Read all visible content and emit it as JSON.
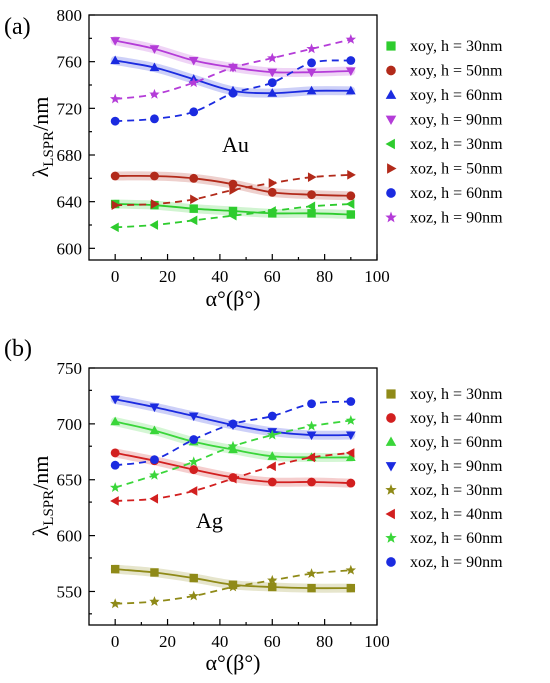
{
  "chart_data": [
    {
      "type": "line",
      "panel_label": "(a)",
      "annotation": "Au",
      "xlabel": "α°(β°)",
      "ylabel_main": "λ",
      "ylabel_sub": "LSPR",
      "ylabel_unit": "/nm",
      "xlim": [
        -10,
        100
      ],
      "ylim": [
        590,
        800
      ],
      "xticks": [
        0,
        20,
        40,
        60,
        80,
        100
      ],
      "yticks": [
        600,
        640,
        680,
        720,
        760,
        800
      ],
      "x": [
        0,
        15,
        30,
        45,
        60,
        75,
        90
      ],
      "series": [
        {
          "name": "xoy, h = 30nm",
          "color": "#2ecc2e",
          "marker": "square",
          "dashed": false,
          "values": [
            638,
            637,
            634,
            632,
            630,
            630,
            629
          ]
        },
        {
          "name": "xoy, h = 50nm",
          "color": "#b22a1a",
          "marker": "circle",
          "dashed": false,
          "values": [
            662,
            662,
            660,
            655,
            648,
            646,
            645
          ]
        },
        {
          "name": "xoy, h = 60nm",
          "color": "#1b2be0",
          "marker": "triangle-up",
          "dashed": false,
          "values": [
            761,
            755,
            745,
            735,
            733,
            735,
            735
          ]
        },
        {
          "name": "xoy, h = 90nm",
          "color": "#b43cd8",
          "marker": "triangle-down",
          "dashed": false,
          "values": [
            778,
            771,
            761,
            755,
            751,
            751,
            752
          ]
        },
        {
          "name": "xoz, h = 30nm",
          "color": "#2ecc2e",
          "marker": "triangle-left",
          "dashed": true,
          "values": [
            618,
            620,
            624,
            628,
            632,
            636,
            638
          ]
        },
        {
          "name": "xoz, h = 50nm",
          "color": "#b22a1a",
          "marker": "triangle-right",
          "dashed": true,
          "values": [
            637,
            638,
            642,
            650,
            656,
            661,
            663
          ]
        },
        {
          "name": "xoz, h = 60nm",
          "color": "#1b2be0",
          "marker": "circle",
          "dashed": true,
          "values": [
            709,
            711,
            717,
            733,
            742,
            759,
            761
          ]
        },
        {
          "name": "xoz, h = 90nm",
          "color": "#b43cd8",
          "marker": "star",
          "dashed": true,
          "values": [
            728,
            732,
            742,
            755,
            763,
            771,
            779
          ]
        }
      ]
    },
    {
      "type": "line",
      "panel_label": "(b)",
      "annotation": "Ag",
      "xlabel": "α°(β°)",
      "ylabel_main": "λ",
      "ylabel_sub": "LSPR",
      "ylabel_unit": "/nm",
      "xlim": [
        -10,
        100
      ],
      "ylim": [
        520,
        750
      ],
      "xticks": [
        0,
        20,
        40,
        60,
        80,
        100
      ],
      "yticks": [
        550,
        600,
        650,
        700,
        750
      ],
      "x": [
        0,
        15,
        30,
        45,
        60,
        75,
        90
      ],
      "series": [
        {
          "name": "xoy, h = 30nm",
          "color": "#8f8a18",
          "marker": "square",
          "dashed": false,
          "values": [
            570,
            567,
            562,
            556,
            554,
            553,
            553
          ]
        },
        {
          "name": "xoy, h = 40nm",
          "color": "#d21f1f",
          "marker": "circle",
          "dashed": false,
          "values": [
            674,
            667,
            659,
            652,
            648,
            648,
            647
          ]
        },
        {
          "name": "xoy, h = 60nm",
          "color": "#3ad63a",
          "marker": "triangle-up",
          "dashed": false,
          "values": [
            702,
            694,
            684,
            677,
            671,
            670,
            670
          ]
        },
        {
          "name": "xoy, h = 90nm",
          "color": "#1b2be0",
          "marker": "triangle-down",
          "dashed": false,
          "values": [
            722,
            715,
            707,
            699,
            693,
            690,
            690
          ]
        },
        {
          "name": "xoz, h = 30nm",
          "color": "#8f8a18",
          "marker": "star",
          "dashed": true,
          "values": [
            539,
            541,
            546,
            554,
            560,
            566,
            569
          ]
        },
        {
          "name": "xoz, h = 40nm",
          "color": "#d21f1f",
          "marker": "triangle-left",
          "dashed": true,
          "values": [
            631,
            633,
            640,
            651,
            662,
            670,
            674
          ]
        },
        {
          "name": "xoz, h = 60nm",
          "color": "#3ad63a",
          "marker": "star",
          "dashed": true,
          "values": [
            643,
            654,
            666,
            680,
            690,
            698,
            703
          ]
        },
        {
          "name": "xoz, h = 90nm",
          "color": "#1b2be0",
          "marker": "circle",
          "dashed": true,
          "values": [
            663,
            668,
            686,
            700,
            707,
            718,
            720
          ]
        }
      ]
    }
  ]
}
